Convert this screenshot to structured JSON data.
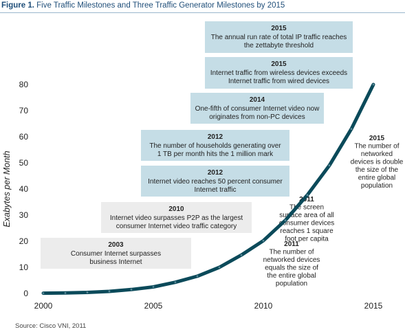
{
  "figure": {
    "label": "Figure 1.",
    "title": "Five Traffic Milestones and Three Traffic Generator Milestones by 2015"
  },
  "source": "Source: Cisco VNI, 2011",
  "chart_data": {
    "type": "line",
    "title": "Five Traffic Milestones and Three Traffic Generator Milestones by 2015",
    "xlabel": "",
    "ylabel": "Exabytes per Month",
    "xlim": [
      2000,
      2015
    ],
    "ylim": [
      0,
      80
    ],
    "x_ticks": [
      "2000",
      "2005",
      "2010",
      "2015"
    ],
    "y_ticks": [
      "0",
      "10",
      "20",
      "30",
      "40",
      "50",
      "60",
      "70",
      "80"
    ],
    "grid": false,
    "series": [
      {
        "name": "",
        "x": [
          2000,
          2001,
          2002,
          2003,
          2004,
          2005,
          2006,
          2007,
          2008,
          2009,
          2010,
          2011,
          2012,
          2013,
          2014,
          2015
        ],
        "values": [
          0.1,
          0.2,
          0.4,
          0.8,
          1.5,
          2.5,
          4.3,
          6.6,
          10,
          14.7,
          20.2,
          28,
          37.7,
          49,
          63,
          80
        ],
        "color": "#0b4a5a"
      }
    ],
    "annotations": [
      {
        "year": "2015",
        "text": [
          "The annual run rate of total IP traffic reaches",
          "the zettabyte threshold"
        ],
        "style": "blue"
      },
      {
        "year": "2015",
        "text": [
          "Internet traffic from wireless devices exceeds",
          "Internet traffic from wired devices"
        ],
        "style": "blue"
      },
      {
        "year": "2014",
        "text": [
          "One-fifth of consumer Internet video now",
          "originates from non-PC devices"
        ],
        "style": "blue"
      },
      {
        "year": "2012",
        "text": [
          "The number of households generating over",
          "1 TB per month hits the 1 million mark"
        ],
        "style": "blue"
      },
      {
        "year": "2012",
        "text": [
          "Internet video reaches 50 percent consumer",
          "Internet traffic"
        ],
        "style": "blue"
      },
      {
        "year": "2010",
        "text": [
          "Internet video surpasses P2P as the largest",
          "consumer Internet video traffic category"
        ],
        "style": "gray"
      },
      {
        "year": "2003",
        "text": [
          "Consumer Internet surpasses",
          "business Internet"
        ],
        "style": "gray"
      },
      {
        "year": "2015",
        "text": [
          "The number of",
          "networked",
          "devices is double",
          "the size of the",
          "entire global",
          "population"
        ],
        "style": "plain"
      },
      {
        "year": "2011",
        "text": [
          "The screen",
          "surface area of all",
          "consumer devices",
          "reaches 1 square",
          "foot per capita"
        ],
        "style": "plain"
      },
      {
        "year": "2011",
        "text": [
          "The number of",
          "networked devices",
          "equals the size of",
          "the entire global",
          "population"
        ],
        "style": "plain"
      }
    ],
    "colors": {
      "line": "#0b4a5a",
      "line_dots": "#5a8a99",
      "blue_box": "#c5dde6",
      "gray_box": "#ececec",
      "title": "#1f4e79"
    }
  }
}
